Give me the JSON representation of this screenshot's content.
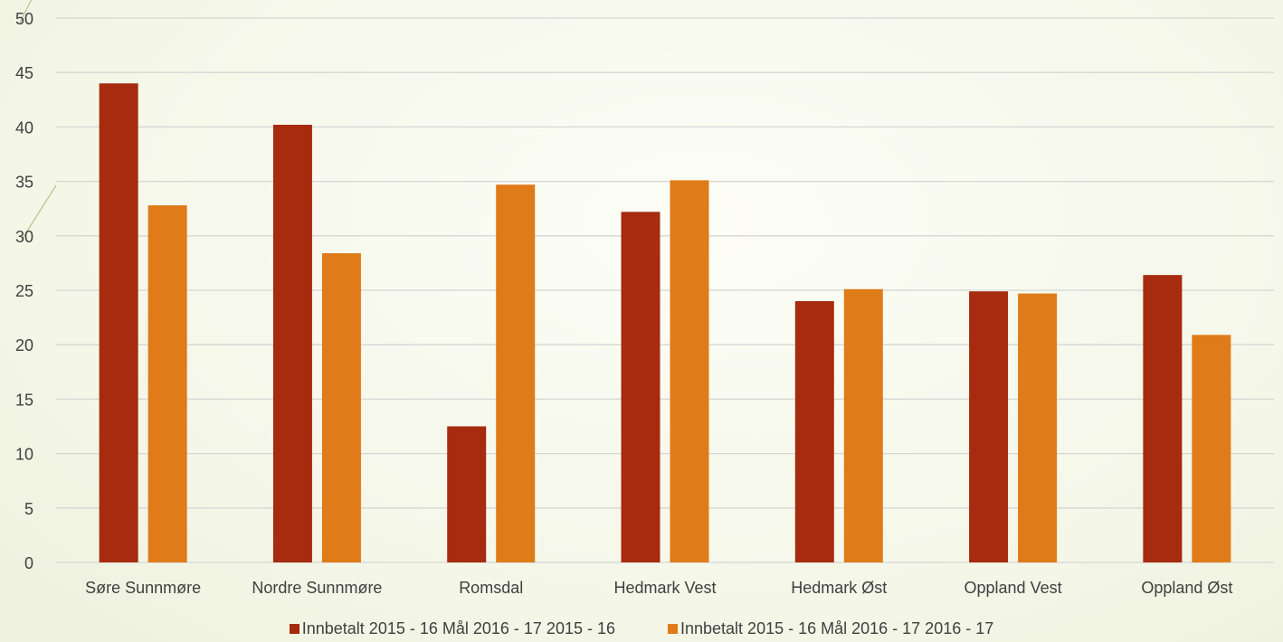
{
  "chart_data": {
    "type": "bar",
    "title": "",
    "xlabel": "",
    "ylabel": "",
    "categories": [
      "Søre Sunnmøre",
      "Nordre Sunnmøre",
      "Romsdal",
      "Hedmark Vest",
      "Hedmark Øst",
      "Oppland Vest",
      "Oppland Øst"
    ],
    "series": [
      {
        "name": "Innbetalt  2015 - 16 Mål 2016 - 17 2015 - 16",
        "color": "#a62b0f",
        "values": [
          44,
          40.2,
          12.5,
          32.2,
          24,
          24.9,
          26.4
        ]
      },
      {
        "name": "Innbetalt  2015 - 16 Mål 2016 - 17 2016 - 17",
        "color": "#df7b18",
        "values": [
          32.8,
          28.4,
          34.7,
          35.1,
          25.1,
          24.7,
          20.9
        ]
      }
    ],
    "ylim": [
      0,
      50
    ],
    "yticks": [
      0,
      5,
      10,
      15,
      20,
      25,
      30,
      35,
      40,
      45,
      50
    ],
    "grid": true,
    "legend_position": "bottom"
  }
}
